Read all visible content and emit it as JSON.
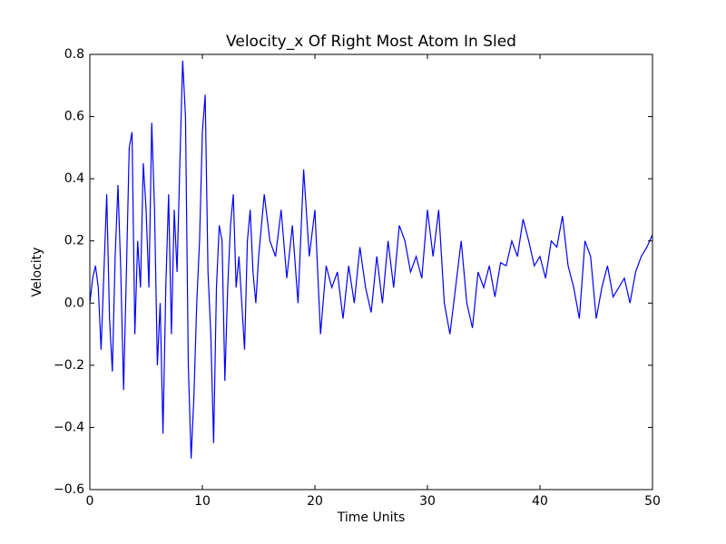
{
  "chart_data": {
    "type": "line",
    "title": "Velocity_x Of Right Most Atom In Sled",
    "xlabel": "Time Units",
    "ylabel": "Velocity",
    "color": "#0000ff",
    "x": [
      0,
      0.25,
      0.5,
      0.75,
      1,
      1.25,
      1.5,
      1.75,
      2,
      2.25,
      2.5,
      2.75,
      3,
      3.25,
      3.5,
      3.75,
      4,
      4.25,
      4.5,
      4.75,
      5,
      5.25,
      5.5,
      5.75,
      6,
      6.25,
      6.5,
      6.75,
      7,
      7.25,
      7.5,
      7.75,
      8,
      8.25,
      8.5,
      8.75,
      9,
      9.25,
      9.5,
      9.75,
      10,
      10.25,
      10.5,
      10.75,
      11,
      11.25,
      11.5,
      11.75,
      12,
      12.25,
      12.5,
      12.75,
      13,
      13.25,
      13.5,
      13.75,
      14,
      14.25,
      14.5,
      14.75,
      15,
      15.5,
      16,
      16.5,
      17,
      17.5,
      18,
      18.5,
      19,
      19.5,
      20,
      20.5,
      21,
      21.5,
      22,
      22.5,
      23,
      23.5,
      24,
      24.5,
      25,
      25.5,
      26,
      26.5,
      27,
      27.5,
      28,
      28.5,
      29,
      29.5,
      30,
      30.5,
      31,
      31.5,
      32,
      32.5,
      33,
      33.5,
      34,
      34.5,
      35,
      35.5,
      36,
      36.5,
      37,
      37.5,
      38,
      38.5,
      39,
      39.5,
      40,
      40.5,
      41,
      41.5,
      42,
      42.5,
      43,
      43.5,
      44,
      44.5,
      45,
      45.5,
      46,
      46.5,
      47,
      47.5,
      48,
      48.5,
      49,
      49.5,
      50
    ],
    "values": [
      0.0,
      0.08,
      0.12,
      0.05,
      -0.15,
      0.1,
      0.35,
      -0.05,
      -0.22,
      0.15,
      0.38,
      0.1,
      -0.28,
      0.1,
      0.5,
      0.55,
      -0.1,
      0.2,
      0.05,
      0.45,
      0.3,
      0.05,
      0.58,
      0.3,
      -0.2,
      0.0,
      -0.42,
      0.05,
      0.35,
      -0.1,
      0.3,
      0.1,
      0.45,
      0.78,
      0.6,
      -0.2,
      -0.5,
      -0.3,
      0.0,
      0.2,
      0.55,
      0.67,
      0.1,
      -0.1,
      -0.45,
      0.05,
      0.25,
      0.2,
      -0.25,
      0.05,
      0.25,
      0.35,
      0.05,
      0.15,
      0.0,
      -0.15,
      0.2,
      0.3,
      0.1,
      0.0,
      0.15,
      0.35,
      0.2,
      0.15,
      0.3,
      0.08,
      0.25,
      0.0,
      0.43,
      0.15,
      0.3,
      -0.1,
      0.12,
      0.05,
      0.1,
      -0.05,
      0.12,
      0.0,
      0.18,
      0.05,
      -0.03,
      0.15,
      0.0,
      0.2,
      0.05,
      0.25,
      0.2,
      0.1,
      0.15,
      0.08,
      0.3,
      0.15,
      0.3,
      0.0,
      -0.1,
      0.05,
      0.2,
      0.0,
      -0.08,
      0.1,
      0.05,
      0.12,
      0.02,
      0.13,
      0.12,
      0.2,
      0.15,
      0.27,
      0.2,
      0.12,
      0.15,
      0.08,
      0.2,
      0.18,
      0.28,
      0.12,
      0.05,
      -0.05,
      0.2,
      0.15,
      -0.05,
      0.05,
      0.12,
      0.02,
      0.05,
      0.08,
      0.0,
      0.1,
      0.15,
      0.18,
      0.22
    ],
    "xlim": [
      0,
      50
    ],
    "xticks": [
      0,
      10,
      20,
      30,
      40,
      50
    ],
    "ylim": [
      -0.6,
      0.8
    ],
    "yticks": [
      {
        "value": -0.6,
        "label": "−0.6"
      },
      {
        "value": -0.4,
        "label": "−0.4"
      },
      {
        "value": -0.2,
        "label": "−0.2"
      },
      {
        "value": 0,
        "label": "0.0"
      },
      0.2,
      0.4,
      0.6,
      0.8
    ]
  }
}
